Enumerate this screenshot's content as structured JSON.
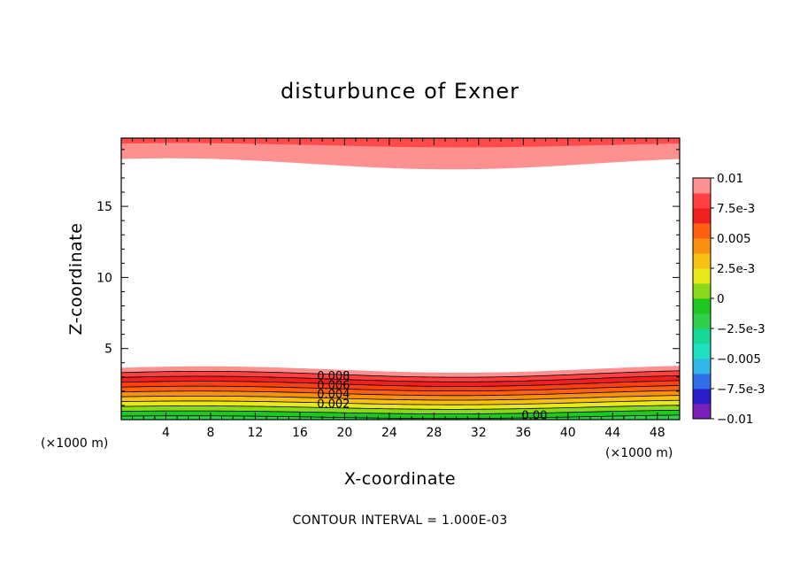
{
  "chart_data": {
    "type": "contour",
    "title": "disturbunce of Exner",
    "xlabel": "X-coordinate",
    "ylabel": "Z-coordinate",
    "x_unit": "(×1000 m)",
    "y_unit": "(×1000 m)",
    "xlim": [
      0,
      50
    ],
    "ylim": [
      0,
      19.8
    ],
    "x_ticks": [
      4,
      8,
      12,
      16,
      20,
      24,
      28,
      32,
      36,
      40,
      44,
      48
    ],
    "y_ticks": [
      5,
      10,
      15
    ],
    "note": "CONTOUR INTERVAL = 1.000E-03",
    "colorbar": {
      "range": [
        -0.01,
        0.01
      ],
      "tick_values": [
        0.01,
        0.0075,
        0.005,
        0.0025,
        0,
        -0.0025,
        -0.005,
        -0.0075,
        -0.01
      ],
      "tick_labels": [
        "0.01",
        "7.5e-3",
        "0.005",
        "2.5e-3",
        "0",
        "−2.5e-3",
        "−0.005",
        "−7.5e-3",
        "−0.01"
      ],
      "colors": [
        "#7a1fb8",
        "#2a1cc8",
        "#2f6fe8",
        "#2fb8e8",
        "#1fe0c0",
        "#18d898",
        "#2ed04a",
        "#1ec820",
        "#8ad81a",
        "#e8e81a",
        "#f8c010",
        "#f89010",
        "#ff6010",
        "#f02020",
        "#ff4040",
        "#ff9090"
      ]
    },
    "contour_labels": [
      {
        "text": "0.008",
        "x": 19,
        "z": 3.1
      },
      {
        "text": "0.006",
        "x": 19,
        "z": 2.45
      },
      {
        "text": "0.004",
        "x": 19,
        "z": 1.85
      },
      {
        "text": "0.002",
        "x": 19,
        "z": 1.15
      },
      {
        "text": "0.00",
        "x": 37,
        "z": 0.35
      }
    ]
  }
}
